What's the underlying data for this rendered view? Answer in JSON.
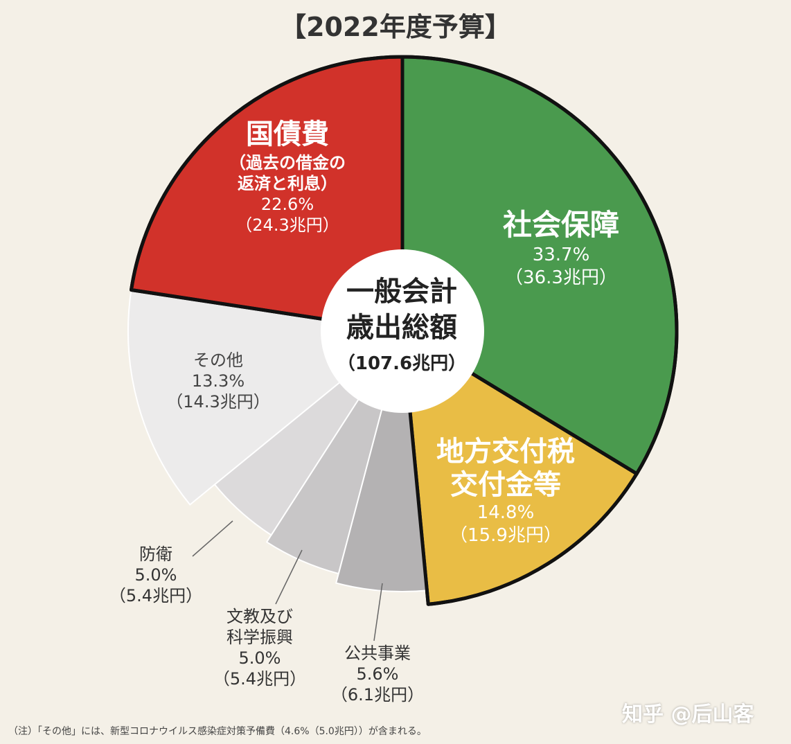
{
  "chart_data": {
    "type": "pie",
    "variant": "donut",
    "title": "【2022年度予算】",
    "center": {
      "line1": "一般会計",
      "line2": "歳出総額",
      "total": "（107.6兆円）"
    },
    "slices": [
      {
        "key": "shakai",
        "label": "社会保障",
        "value": 33.7,
        "percent": "33.7%",
        "amount": "（36.3兆円）",
        "color": "#4a9a4e",
        "highlight": true
      },
      {
        "key": "chiho",
        "label_lines": [
          "地方交付税",
          "交付金等"
        ],
        "value": 14.8,
        "percent": "14.8%",
        "amount": "（15.9兆円）",
        "color": "#e9bd45",
        "highlight": true
      },
      {
        "key": "koukyou",
        "label": "公共事業",
        "value": 5.6,
        "percent": "5.6%",
        "amount": "（6.1兆円）",
        "color": "#b4b2b3",
        "highlight": false
      },
      {
        "key": "bunkyo",
        "label_lines": [
          "文教及び",
          "科学振興"
        ],
        "value": 5.0,
        "percent": "5.0%",
        "amount": "（5.4兆円）",
        "color": "#c8c6c7",
        "highlight": false
      },
      {
        "key": "bouei",
        "label": "防衛",
        "value": 5.0,
        "percent": "5.0%",
        "amount": "（5.4兆円）",
        "color": "#dcdadb",
        "highlight": false
      },
      {
        "key": "sonota",
        "label": "その他",
        "value": 13.3,
        "percent": "13.3%",
        "amount": "（14.3兆円）",
        "color": "#ecebeb",
        "highlight": false
      },
      {
        "key": "kokusai",
        "label": "国債費",
        "sublabel_lines": [
          "（過去の借金の",
          "返済と利息）"
        ],
        "value": 22.6,
        "percent": "22.6%",
        "amount": "（24.3兆円）",
        "color": "#d1322a",
        "highlight": true
      }
    ]
  },
  "footnote": "（注）「その他」には、新型コロナウイルス感染症対策予備費（4.6%（5.0兆円））が含まれる。",
  "watermark": "知乎 @后山客"
}
